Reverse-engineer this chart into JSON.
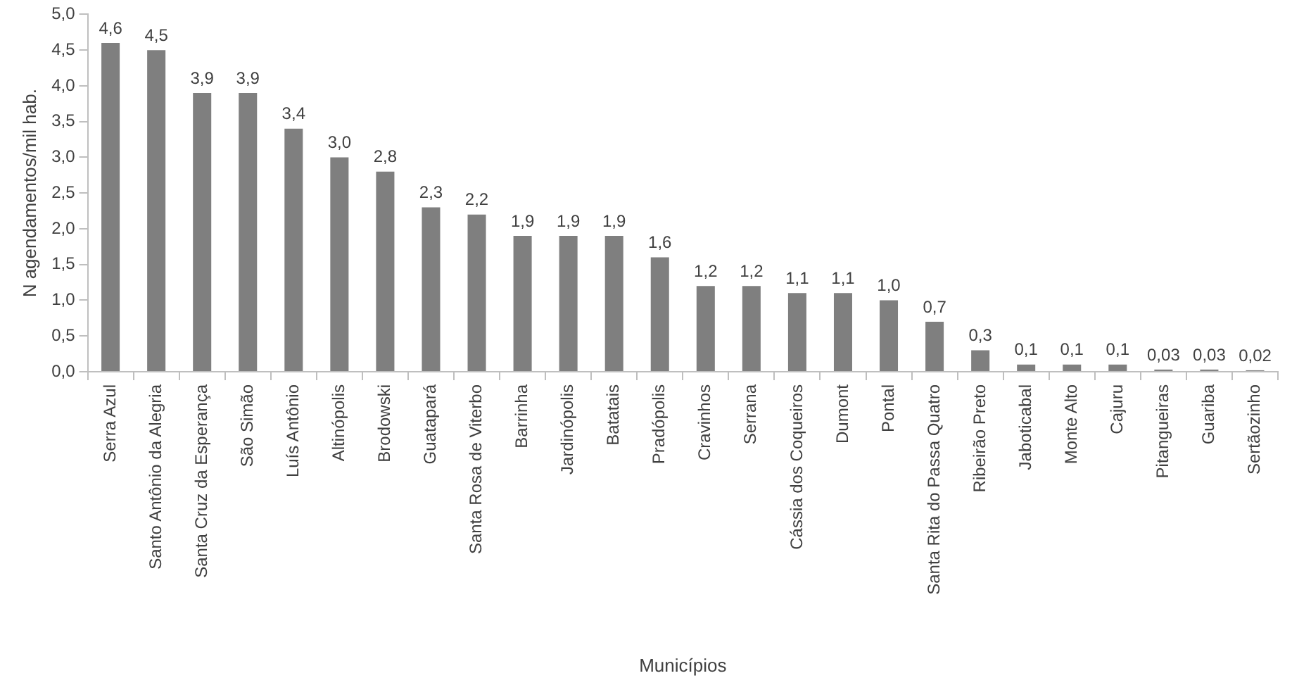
{
  "chart_data": {
    "type": "bar",
    "xlabel": "Municípios",
    "ylabel": "N agendamentos/mil hab.",
    "categories": [
      "Serra Azul",
      "Santo Antônio da Alegria",
      "Santa Cruz da Esperança",
      "São Simão",
      "Luís Antônio",
      "Altinópolis",
      "Brodowski",
      "Guatapará",
      "Santa Rosa de Viterbo",
      "Barrinha",
      "Jardinópolis",
      "Batatais",
      "Pradópolis",
      "Cravinhos",
      "Serrana",
      "Cássia dos Coqueiros",
      "Dumont",
      "Pontal",
      "Santa Rita do Passa Quatro",
      "Ribeirão Preto",
      "Jaboticabal",
      "Monte Alto",
      "Cajuru",
      "Pitangueiras",
      "Guariba",
      "Sertãozinho"
    ],
    "values": [
      4.6,
      4.5,
      3.9,
      3.9,
      3.4,
      3.0,
      2.8,
      2.3,
      2.2,
      1.9,
      1.9,
      1.9,
      1.6,
      1.2,
      1.2,
      1.1,
      1.1,
      1.0,
      0.7,
      0.3,
      0.1,
      0.1,
      0.1,
      0.03,
      0.03,
      0.02
    ],
    "value_labels": [
      "4,6",
      "4,5",
      "3,9",
      "3,9",
      "3,4",
      "3,0",
      "2,8",
      "2,3",
      "2,2",
      "1,9",
      "1,9",
      "1,9",
      "1,6",
      "1,2",
      "1,2",
      "1,1",
      "1,1",
      "1,0",
      "0,7",
      "0,3",
      "0,1",
      "0,1",
      "0,1",
      "0,03",
      "0,03",
      "0,02"
    ],
    "color": "#7f7f7f",
    "ylim": [
      0,
      5
    ],
    "yticks": [
      {
        "value": 0,
        "label": "0,0"
      },
      {
        "value": 0.5,
        "label": "0,5"
      },
      {
        "value": 1,
        "label": "1,0"
      },
      {
        "value": 1.5,
        "label": "1,5"
      },
      {
        "value": 2,
        "label": "2,0"
      },
      {
        "value": 2.5,
        "label": "2,5"
      },
      {
        "value": 3,
        "label": "3,0"
      },
      {
        "value": 3.5,
        "label": "3,5"
      },
      {
        "value": 4,
        "label": "4,0"
      },
      {
        "value": 4.5,
        "label": "4,5"
      },
      {
        "value": 5,
        "label": "5,0"
      }
    ],
    "grid": false,
    "legend": false
  }
}
